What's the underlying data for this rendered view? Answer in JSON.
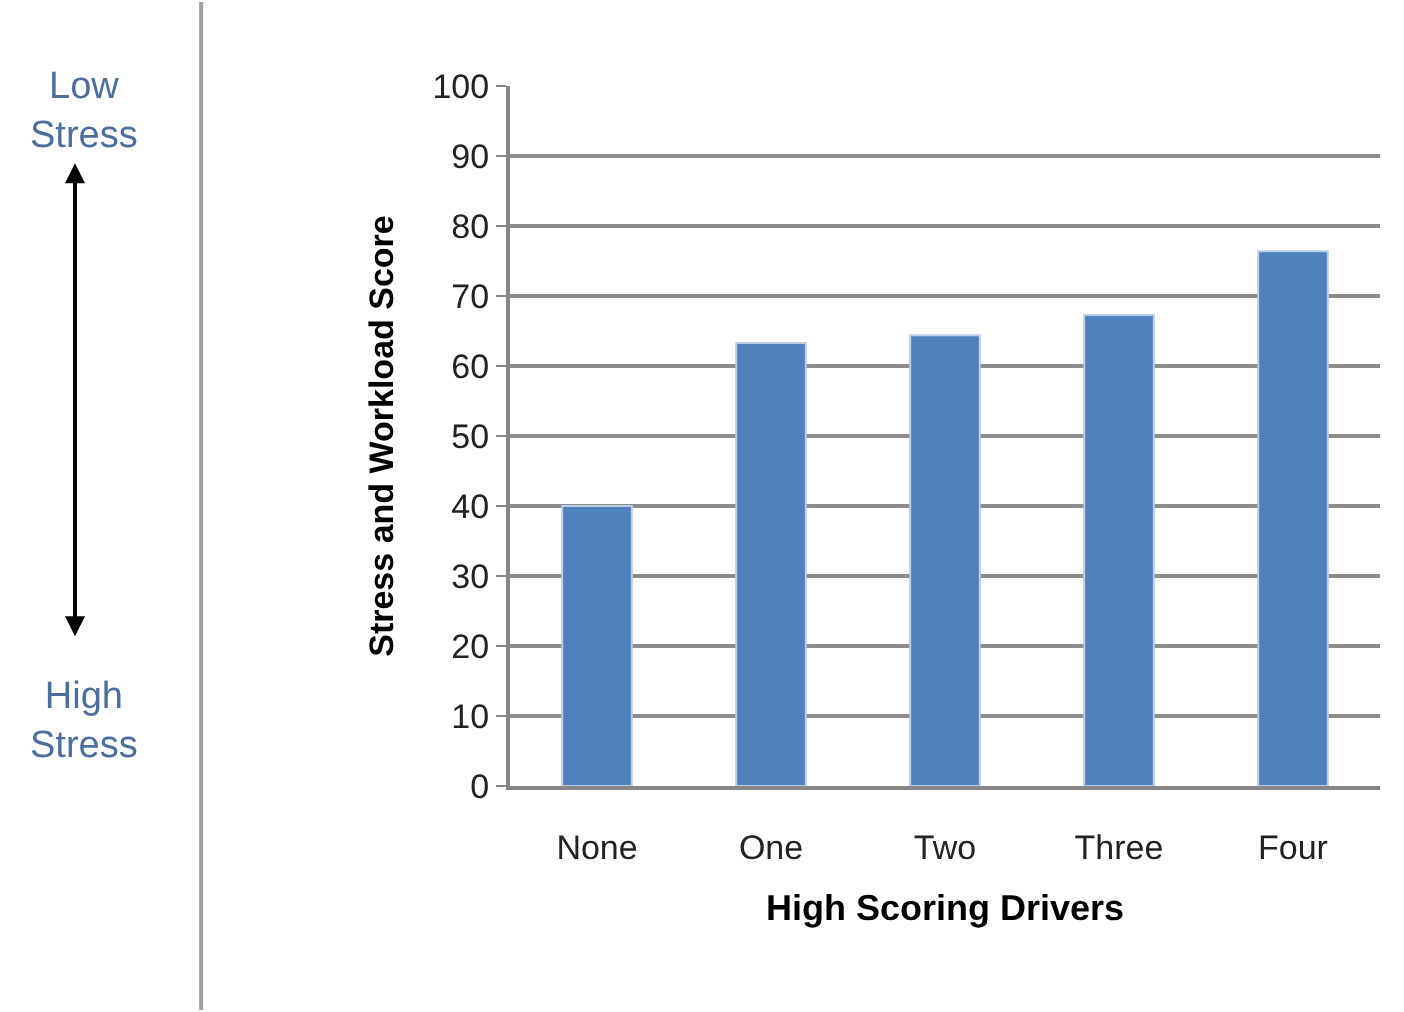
{
  "chart_data": {
    "type": "bar",
    "xlabel": "High Scoring Drivers",
    "ylabel": "Stress and Workload Score",
    "categories": [
      "None",
      "One",
      "Two",
      "Three",
      "Four"
    ],
    "values": [
      40,
      63.3,
      64.4,
      67.3,
      76.4
    ],
    "color": "#4f81bd",
    "ylim": [
      0,
      100
    ],
    "yticks": [
      0,
      10,
      20,
      30,
      40,
      50,
      60,
      70,
      80,
      90,
      100
    ],
    "grid": "y",
    "annotations": [
      "Low\nStress",
      "High\nStress"
    ]
  }
}
